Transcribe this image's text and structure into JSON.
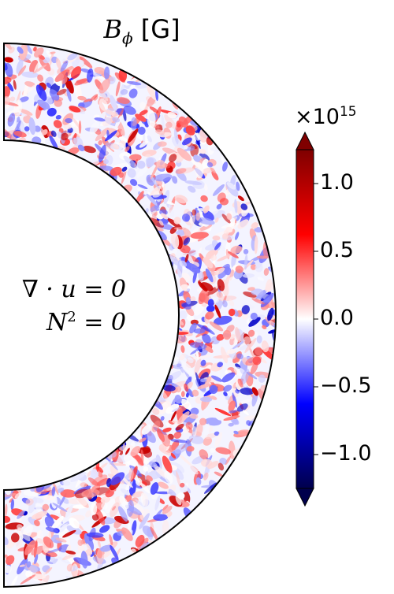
{
  "title": {
    "symbol": "B",
    "subscript": "ϕ",
    "unit": "[G]"
  },
  "annotations": {
    "line1": "∇ · u = 0",
    "line2_base": "N",
    "line2_sup": "2",
    "line2_rest": " = 0"
  },
  "chart_data": {
    "type": "heatmap",
    "geometry": "meridional half-annulus (spherical shell cross-section)",
    "quantity": "B_phi",
    "colormap": "seismic",
    "colormap_stops": [
      "#00004c",
      "#0000ff",
      "#ffffff",
      "#ff0000",
      "#7f0000"
    ],
    "colorbar": {
      "multiplier_base": "×10",
      "multiplier_exp": "15",
      "vmin": -1.25,
      "vmax": 1.25,
      "ticks": [
        1.0,
        0.5,
        0.0,
        -0.5,
        -1.0
      ],
      "tick_labels": [
        "1.0",
        "0.5",
        "0.0",
        "−0.5",
        "−1.0"
      ],
      "extend": "both"
    }
  }
}
